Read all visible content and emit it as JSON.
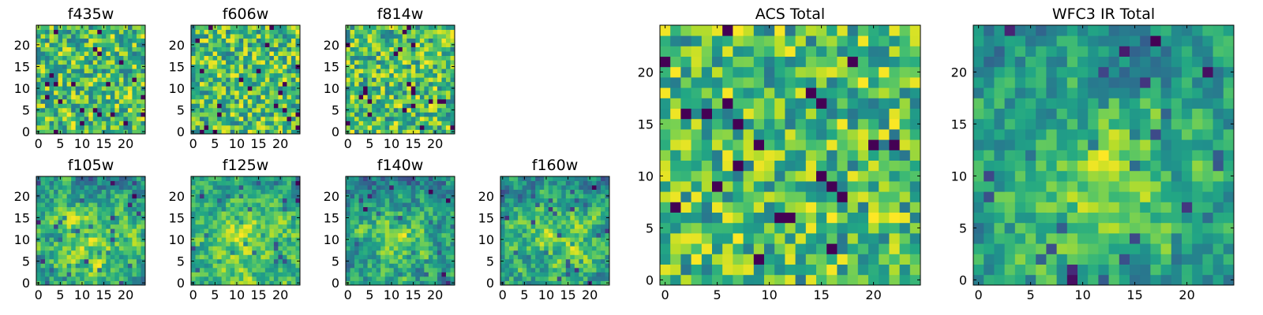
{
  "colors": {
    "cmap": "viridis",
    "frame": "#000000",
    "background": "#ffffff"
  },
  "chart_data": [
    {
      "type": "heatmap",
      "title": "f435w",
      "grid_size": [
        25,
        25
      ],
      "xticks": [
        0,
        5,
        10,
        15,
        20
      ],
      "yticks": [
        0,
        5,
        10,
        15,
        20
      ],
      "xlim": [
        -0.5,
        24.5
      ],
      "ylim": [
        -0.5,
        24.5
      ],
      "grid": false,
      "seed": 11,
      "pattern": "noisy_uniform"
    },
    {
      "type": "heatmap",
      "title": "f606w",
      "grid_size": [
        25,
        25
      ],
      "xticks": [
        0,
        5,
        10,
        15,
        20
      ],
      "yticks": [
        0,
        5,
        10,
        15,
        20
      ],
      "xlim": [
        -0.5,
        24.5
      ],
      "ylim": [
        -0.5,
        24.5
      ],
      "grid": false,
      "seed": 23,
      "pattern": "noisy_uniform"
    },
    {
      "type": "heatmap",
      "title": "f814w",
      "grid_size": [
        25,
        25
      ],
      "xticks": [
        0,
        5,
        10,
        15,
        20
      ],
      "yticks": [
        0,
        5,
        10,
        15,
        20
      ],
      "xlim": [
        -0.5,
        24.5
      ],
      "ylim": [
        -0.5,
        24.5
      ],
      "grid": false,
      "seed": 37,
      "pattern": "noisy_uniform"
    },
    {
      "type": "heatmap",
      "title": "f105w",
      "grid_size": [
        25,
        25
      ],
      "xticks": [
        0,
        5,
        10,
        15,
        20
      ],
      "yticks": [
        0,
        5,
        10,
        15,
        20
      ],
      "xlim": [
        -0.5,
        24.5
      ],
      "ylim": [
        -0.5,
        24.5
      ],
      "grid": false,
      "seed": 41,
      "pattern": "bright_center_dark_top"
    },
    {
      "type": "heatmap",
      "title": "f125w",
      "grid_size": [
        25,
        25
      ],
      "xticks": [
        0,
        5,
        10,
        15,
        20
      ],
      "yticks": [
        0,
        5,
        10,
        15,
        20
      ],
      "xlim": [
        -0.5,
        24.5
      ],
      "ylim": [
        -0.5,
        24.5
      ],
      "grid": false,
      "seed": 53,
      "pattern": "bright_center_dark_top"
    },
    {
      "type": "heatmap",
      "title": "f140w",
      "grid_size": [
        25,
        25
      ],
      "xticks": [
        0,
        5,
        10,
        15,
        20
      ],
      "yticks": [
        0,
        5,
        10,
        15,
        20
      ],
      "xlim": [
        -0.5,
        24.5
      ],
      "ylim": [
        -0.5,
        24.5
      ],
      "grid": false,
      "seed": 67,
      "pattern": "bright_center_dark_top"
    },
    {
      "type": "heatmap",
      "title": "f160w",
      "grid_size": [
        25,
        25
      ],
      "xticks": [
        0,
        5,
        10,
        15,
        20
      ],
      "yticks": [
        0,
        5,
        10,
        15,
        20
      ],
      "xlim": [
        -0.5,
        24.5
      ],
      "ylim": [
        -0.5,
        24.5
      ],
      "grid": false,
      "seed": 79,
      "pattern": "bright_center_dark_top"
    },
    {
      "type": "heatmap",
      "title": "ACS Total",
      "grid_size": [
        25,
        25
      ],
      "xticks": [
        0,
        5,
        10,
        15,
        20
      ],
      "yticks": [
        0,
        5,
        10,
        15,
        20
      ],
      "xlim": [
        -0.5,
        24.5
      ],
      "ylim": [
        -0.5,
        24.5
      ],
      "grid": false,
      "seed": 97,
      "pattern": "noisy_uniform"
    },
    {
      "type": "heatmap",
      "title": "WFC3 IR Total",
      "grid_size": [
        25,
        25
      ],
      "xticks": [
        0,
        5,
        10,
        15,
        20
      ],
      "yticks": [
        0,
        5,
        10,
        15,
        20
      ],
      "xlim": [
        -0.5,
        24.5
      ],
      "ylim": [
        -0.5,
        24.5
      ],
      "grid": false,
      "seed": 101,
      "pattern": "bright_center_dark_top"
    }
  ]
}
